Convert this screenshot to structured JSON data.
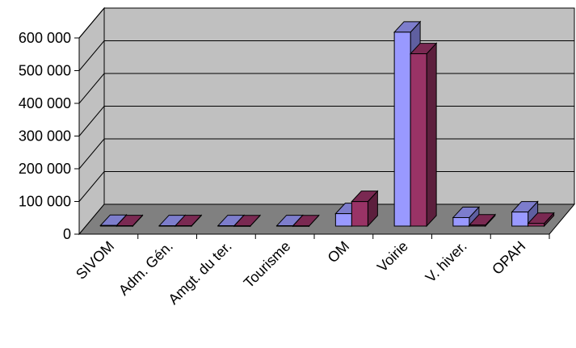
{
  "chart_data": {
    "type": "bar",
    "title": "",
    "xlabel": "",
    "ylabel": "",
    "categories": [
      "SIVOM",
      "Adm. Gén.",
      "Amgt. du ter.",
      "Tourisme",
      "OM",
      "Voirie",
      "V. hiver.",
      "OPAH"
    ],
    "series": [
      {
        "values": [
          2000,
          1000,
          1000,
          1000,
          38000,
          593000,
          26000,
          43000
        ]
      },
      {
        "values": [
          1000,
          1000,
          500,
          500,
          75000,
          527000,
          3000,
          8000
        ]
      }
    ],
    "ylim": [
      0,
      600000
    ],
    "yticks": [
      "0",
      "100 000",
      "200 000",
      "300 000",
      "400 000",
      "500 000",
      "600 000"
    ],
    "grid": true,
    "legend": "none",
    "colors": {
      "series1_front": "#9999ff",
      "series1_top": "#7d7dcc",
      "series1_side": "#5f5fa0",
      "series2_front": "#993366",
      "series2_top": "#7a2952",
      "series2_side": "#5c1f3d",
      "wall": "#c0c0c0",
      "floor": "#808080",
      "grid": "#000000"
    }
  }
}
